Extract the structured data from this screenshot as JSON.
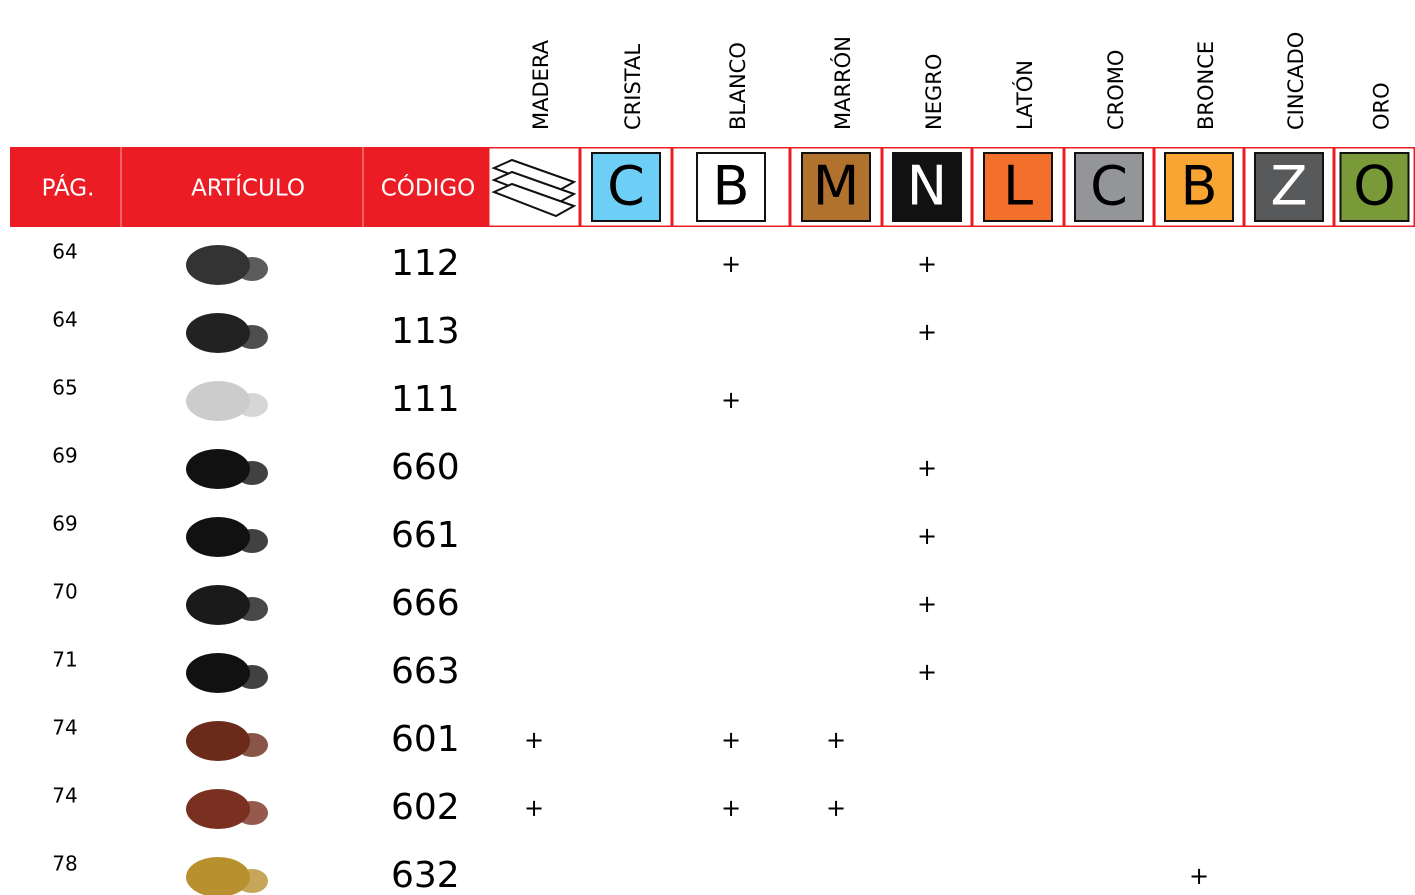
{
  "header": [
    "PÁG.",
    "ARTÍCULO",
    "CÓDIGO"
  ],
  "colors": [
    {
      "name": "MADERA"
    },
    {
      "name": "CRISTAL",
      "letter": "C",
      "color": "#6dcff6",
      "text_color": "#000000"
    },
    {
      "name": "BLANCO",
      "letter": "B",
      "color": "#ffffff",
      "text_color": "#000000"
    },
    {
      "name": "MARRÓN",
      "letter": "M",
      "color": "#b0722c",
      "text_color": "#000000"
    },
    {
      "name": "NEGRO",
      "letter": "N",
      "color": "#111111",
      "text_color": "#ffffff"
    },
    {
      "name": "LATÓN",
      "letter": "L",
      "color": "#f26f2c",
      "text_color": "#000000"
    },
    {
      "name": "CROMO",
      "letter": "C",
      "color": "#939598",
      "text_color": "#000000"
    },
    {
      "name": "BRONCE",
      "letter": "B",
      "color": "#f9a533",
      "text_color": "#000000"
    },
    {
      "name": "CINCADO",
      "letter": "Z",
      "color": "#58595b",
      "text_color": "#ffffff"
    },
    {
      "name": "ORO",
      "letter": "O",
      "color": "#7a9a3a",
      "text_color": "#000000"
    }
  ],
  "rows": [
    {
      "page": "64",
      "code": "112",
      "cells": [
        null,
        null,
        "+",
        null,
        "+",
        null,
        null,
        null,
        null,
        null
      ]
    },
    {
      "page": "64",
      "code": "113",
      "cells": [
        null,
        null,
        null,
        null,
        "+",
        null,
        null,
        null,
        null,
        null
      ]
    },
    {
      "page": "65",
      "code": "111",
      "cells": [
        null,
        null,
        "+",
        null,
        null,
        null,
        null,
        null,
        null,
        null
      ]
    },
    {
      "page": "69",
      "code": "660",
      "cells": [
        null,
        null,
        null,
        null,
        "+",
        null,
        null,
        null,
        null,
        null
      ]
    },
    {
      "page": "69",
      "code": "661",
      "cells": [
        null,
        null,
        null,
        null,
        "+",
        null,
        null,
        null,
        null,
        null
      ]
    },
    {
      "page": "70",
      "code": "666",
      "cells": [
        null,
        null,
        null,
        null,
        "+",
        null,
        null,
        null,
        null,
        null
      ]
    },
    {
      "page": "71",
      "code": "663",
      "cells": [
        null,
        null,
        null,
        null,
        "+",
        null,
        null,
        null,
        null,
        null
      ]
    },
    {
      "page": "74",
      "code": "601",
      "cells": [
        "+",
        null,
        "+",
        "+",
        null,
        null,
        null,
        null,
        null,
        null
      ]
    },
    {
      "page": "74",
      "code": "602",
      "cells": [
        "+",
        null,
        "+",
        "+",
        null,
        null,
        null,
        null,
        null,
        null
      ]
    },
    {
      "page": "78",
      "code": "632",
      "cells": [
        null,
        null,
        null,
        null,
        null,
        null,
        null,
        "+",
        null,
        null
      ]
    }
  ]
}
